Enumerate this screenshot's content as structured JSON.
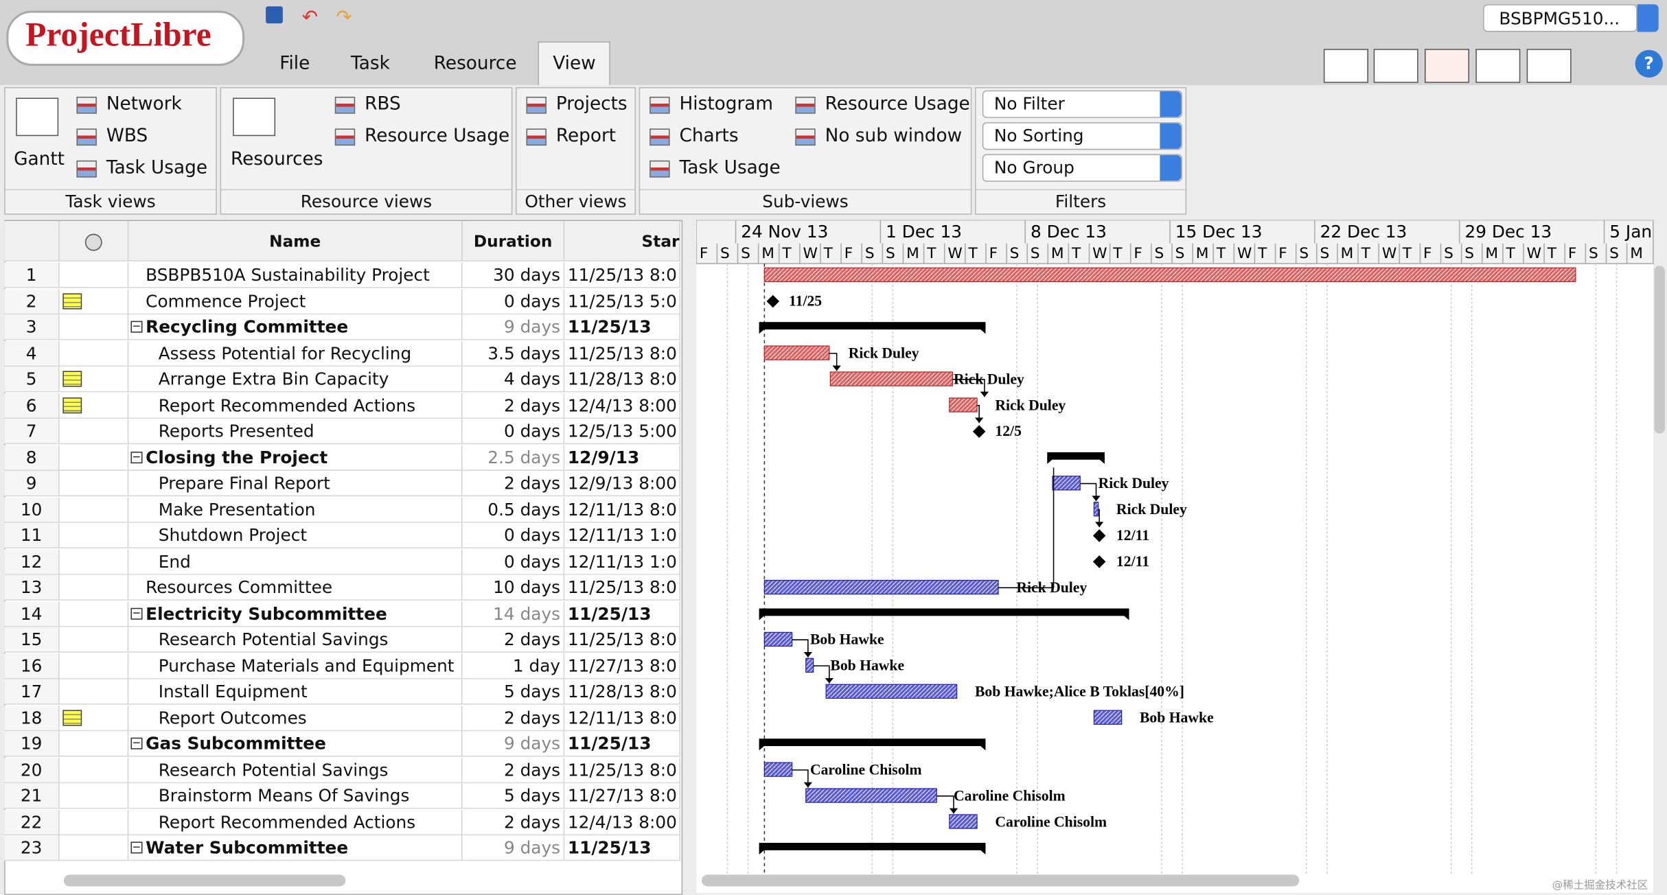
{
  "app": {
    "logo": "ProjectLibre",
    "project_selector": "BSBPMG510..."
  },
  "menu": [
    "File",
    "Task",
    "Resource",
    "View"
  ],
  "ribbon": [
    {
      "label": "Task views",
      "items": [
        "Gantt",
        "Network",
        "WBS",
        "Task Usage"
      ]
    },
    {
      "label": "Resource views",
      "items": [
        "Resources",
        "RBS",
        "Resource Usage"
      ]
    },
    {
      "label": "Other views",
      "items": [
        "Projects",
        "Report"
      ]
    },
    {
      "label": "Sub-views",
      "items": [
        "Histogram",
        "Resource Usage",
        "Charts",
        "No sub window",
        "Task Usage"
      ]
    },
    {
      "label": "Filters",
      "items": [
        "No Filter",
        "No Sorting",
        "No Group"
      ]
    }
  ],
  "table": {
    "columns": [
      "Name",
      "Duration",
      "Star"
    ],
    "rows": [
      {
        "id": "1",
        "name": "BSBPB510A Sustainability Project",
        "duration": "30 days",
        "start": "11/25/13 8:0"
      },
      {
        "id": "2",
        "name": "Commence Project",
        "duration": "0 days",
        "start": "11/25/13 5:0"
      },
      {
        "id": "3",
        "name": "Recycling Committee",
        "duration": "9 days",
        "start": "11/25/13 8:0",
        "summary": true
      },
      {
        "id": "4",
        "name": "Assess Potential for Recycling",
        "duration": "3.5 days",
        "start": "11/25/13 8:0"
      },
      {
        "id": "5",
        "name": "Arrange Extra Bin Capacity",
        "duration": "4 days",
        "start": "11/28/13 8:0"
      },
      {
        "id": "6",
        "name": "Report Recommended Actions",
        "duration": "2 days",
        "start": "12/4/13 8:00"
      },
      {
        "id": "7",
        "name": "Reports Presented",
        "duration": "0 days",
        "start": "12/5/13 5:00"
      },
      {
        "id": "8",
        "name": "Closing the Project",
        "duration": "2.5 days",
        "start": "12/9/13 8:00",
        "summary": true
      },
      {
        "id": "9",
        "name": "Prepare Final Report",
        "duration": "2 days",
        "start": "12/9/13 8:00"
      },
      {
        "id": "10",
        "name": "Make Presentation",
        "duration": "0.5 days",
        "start": "12/11/13 8:0"
      },
      {
        "id": "11",
        "name": "Shutdown Project",
        "duration": "0 days",
        "start": "12/11/13 1:0"
      },
      {
        "id": "12",
        "name": "End",
        "duration": "0 days",
        "start": "12/11/13 1:0"
      },
      {
        "id": "13",
        "name": "Resources Committee",
        "duration": "10 days",
        "start": "11/25/13 8:0"
      },
      {
        "id": "14",
        "name": "Electricity Subcommittee",
        "duration": "14 days",
        "start": "11/25/13 8:0",
        "summary": true
      },
      {
        "id": "15",
        "name": "Research Potential Savings",
        "duration": "2 days",
        "start": "11/25/13 8:0"
      },
      {
        "id": "16",
        "name": "Purchase Materials and Equipment",
        "duration": "1 day",
        "start": "11/27/13 8:0"
      },
      {
        "id": "17",
        "name": "Install Equipment",
        "duration": "5 days",
        "start": "11/28/13 8:0"
      },
      {
        "id": "18",
        "name": "Report Outcomes",
        "duration": "2 days",
        "start": "12/11/13 8:0"
      },
      {
        "id": "19",
        "name": "Gas Subcommittee",
        "duration": "9 days",
        "start": "11/25/13 8:0",
        "summary": true
      },
      {
        "id": "20",
        "name": "Research Potential Savings",
        "duration": "2 days",
        "start": "11/25/13 8:0"
      },
      {
        "id": "21",
        "name": "Brainstorm Means Of Savings",
        "duration": "5 days",
        "start": "11/27/13 8:0"
      },
      {
        "id": "22",
        "name": "Report Recommended Actions",
        "duration": "2 days",
        "start": "12/4/13 8:00"
      },
      {
        "id": "23",
        "name": "Water Subcommittee",
        "duration": "9 days",
        "start": "11/25/13 8:0",
        "summary": true
      }
    ]
  },
  "gantt": {
    "weeks": [
      "24 Nov 13",
      "1 Dec 13",
      "8 Dec 13",
      "15 Dec 13",
      "22 Dec 13",
      "29 Dec 13",
      "5 Jan"
    ],
    "days": [
      "F",
      "S",
      "S",
      "M",
      "T",
      "W",
      "T",
      "F",
      "S",
      "S",
      "M",
      "T",
      "W",
      "T",
      "F",
      "S",
      "S",
      "M",
      "T",
      "W",
      "T",
      "F",
      "S",
      "S",
      "M",
      "T",
      "W",
      "T",
      "F",
      "S",
      "S",
      "M",
      "T",
      "W",
      "T",
      "F",
      "S",
      "S",
      "M",
      "T",
      "W",
      "T",
      "F",
      "S",
      "S",
      "M"
    ],
    "bar_labels": [
      null,
      "11/25",
      null,
      "Rick Duley",
      "Rick Duley",
      "Rick Duley",
      "12/5",
      null,
      "Rick Duley",
      "Rick Duley",
      "12/11",
      "12/11",
      "Rick Duley",
      null,
      "Bob Hawke",
      "Bob Hawke",
      "Bob Hawke;Alice B Toklas[40%]",
      "Bob Hawke",
      null,
      "Caroline Chisolm",
      "Caroline Chisolm",
      "Caroline Chisolm",
      null
    ]
  },
  "watermark": "@稀土掘金技术社区"
}
